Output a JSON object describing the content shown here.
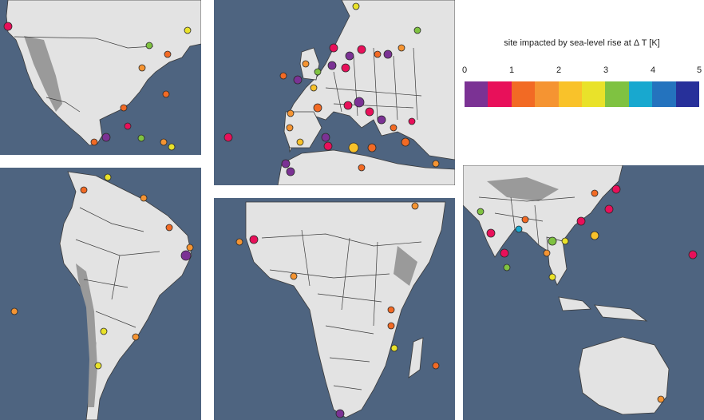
{
  "legend": {
    "title": "site impacted by sea-level rise at Δ T [K]",
    "ticks": [
      "0",
      "1",
      "2",
      "3",
      "4",
      "5"
    ],
    "colors": [
      "#7b3294",
      "#e8105a",
      "#f26a24",
      "#f59432",
      "#f9c22a",
      "#e9e22a",
      "#7fc241",
      "#18a8cf",
      "#2473be",
      "#27309a"
    ]
  },
  "colors": {
    "ocean": "#4e6480",
    "land": "#e3e3e3",
    "mountain": "#9a9a9a"
  }
}
